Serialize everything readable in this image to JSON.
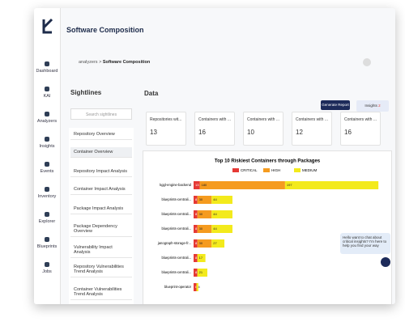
{
  "app": {
    "title": "Software Composition",
    "breadcrumb": [
      "analyzers",
      ">",
      "Software Composition"
    ]
  },
  "sidebar": [
    "Dashboard",
    "KAI",
    "Analyzers",
    "Insights",
    "Events",
    "Inventory",
    "Explorer",
    "Blueprints",
    "Jobs"
  ],
  "sightlines": {
    "title": "Sightlines",
    "search_placeholder": "Search sightlines",
    "items": [
      "Repository Overview",
      "Container Overview",
      "Repository Impact Analysis",
      "Container Impact Analysis",
      "Package Impact Analysis",
      "Package Dependency Overview",
      "Vulnerability Impact Analysis",
      "Repository Vulnerabilities Trend Analysis",
      "Container Vulnerabilities Trend Analysis"
    ]
  },
  "data_section": {
    "title": "Data",
    "generate_report": "Generate Report",
    "insights": "Insights",
    "insights_count": 2,
    "cards": [
      {
        "label": "Repositories wit...",
        "value": 13
      },
      {
        "label": "Containers with ...",
        "value": 16
      },
      {
        "label": "Containers with ...",
        "value": 10
      },
      {
        "label": "Containers with ...",
        "value": 12
      },
      {
        "label": "Containers with ...",
        "value": 16
      }
    ]
  },
  "chat": {
    "message": "Hello want to chat about critical insights? I'm here to help you find your way"
  },
  "chart_data": {
    "type": "bar",
    "orientation": "horizontal",
    "stacked": true,
    "title": "Top 10 Riskiest Containers through Packages",
    "categories": [
      "kggl-engine-backend",
      "blueprints-centrali...",
      "blueprints-centrali...",
      "blueprints-centrali...",
      "janograph-storage-fr...",
      "blueprints-centrali...",
      "blueprints-centrali...",
      "blueprint-operator"
    ],
    "series": [
      {
        "name": "CRITICAL",
        "color": "#e53935",
        "values": [
          13,
          8,
          8,
          8,
          8,
          8,
          8,
          6
        ]
      },
      {
        "name": "HIGH",
        "color": "#f59b1f",
        "values": [
          180,
          30,
          30,
          30,
          30,
          null,
          null,
          null
        ]
      },
      {
        "name": "MEDIUM",
        "color": "#f3ea1c",
        "values": [
          197,
          44,
          44,
          44,
          27,
          17,
          21,
          4
        ]
      }
    ],
    "xlim": [
      0,
      400
    ],
    "legend": "top"
  }
}
